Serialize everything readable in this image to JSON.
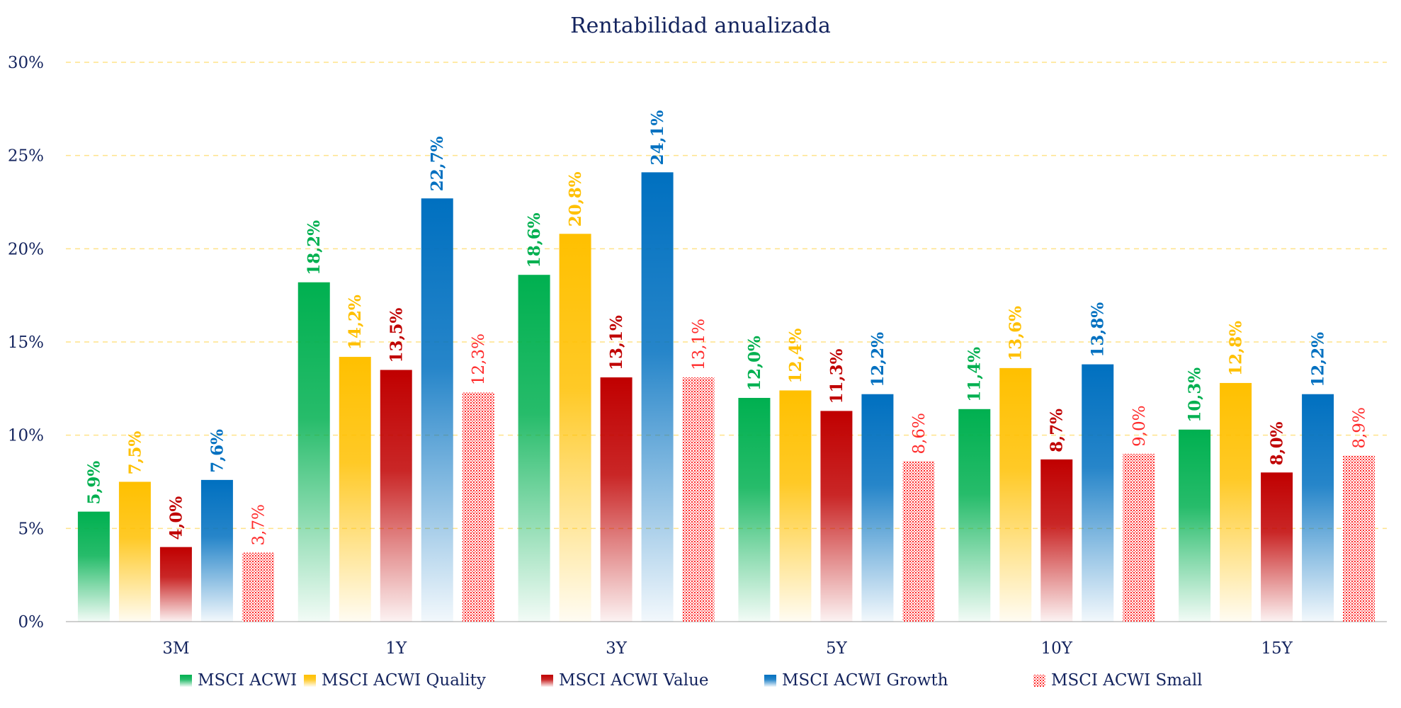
{
  "chart_data": {
    "type": "bar",
    "title": "Rentabilidad anualizada",
    "xlabel": "",
    "ylabel": "",
    "ylim": [
      0,
      30
    ],
    "ytick_values": [
      0,
      5,
      10,
      15,
      20,
      25,
      30
    ],
    "ytick_labels": [
      "0%",
      "5%",
      "10%",
      "15%",
      "20%",
      "25%",
      "30%"
    ],
    "grid": true,
    "legend_position": "bottom",
    "categories": [
      "3M",
      "1Y",
      "3Y",
      "5Y",
      "10Y",
      "15Y"
    ],
    "series": [
      {
        "name": "MSCI ACWI",
        "color": "#00b050",
        "pattern": "gradient",
        "values": [
          5.9,
          18.2,
          18.6,
          12.0,
          11.4,
          10.3
        ],
        "labels": [
          "5,9%",
          "18,2%",
          "18,6%",
          "12,0%",
          "11,4%",
          "10,3%"
        ]
      },
      {
        "name": "MSCI ACWI Quality",
        "color": "#ffc000",
        "pattern": "gradient",
        "values": [
          7.5,
          14.2,
          20.8,
          12.4,
          13.6,
          12.8
        ],
        "labels": [
          "7,5%",
          "14,2%",
          "20,8%",
          "12,4%",
          "13,6%",
          "12,8%"
        ]
      },
      {
        "name": "MSCI ACWI Value",
        "color": "#c00000",
        "pattern": "gradient",
        "values": [
          4.0,
          13.5,
          13.1,
          11.3,
          8.7,
          8.0
        ],
        "labels": [
          "4,0%",
          "13,5%",
          "13,1%",
          "11,3%",
          "8,7%",
          "8,0%"
        ]
      },
      {
        "name": "MSCI ACWI Growth",
        "color": "#0070c0",
        "pattern": "gradient",
        "values": [
          7.6,
          22.7,
          24.1,
          12.2,
          13.8,
          12.2
        ],
        "labels": [
          "7,6%",
          "22,7%",
          "24,1%",
          "12,2%",
          "13,8%",
          "12,2%"
        ]
      },
      {
        "name": "MSCI ACWI Small",
        "color": "#ff2a2a",
        "pattern": "dots",
        "values": [
          3.7,
          12.3,
          13.1,
          8.6,
          9.0,
          8.9
        ],
        "labels": [
          "3,7%",
          "12,3%",
          "13,1%",
          "8,6%",
          "9,0%",
          "8,9%"
        ]
      }
    ]
  }
}
